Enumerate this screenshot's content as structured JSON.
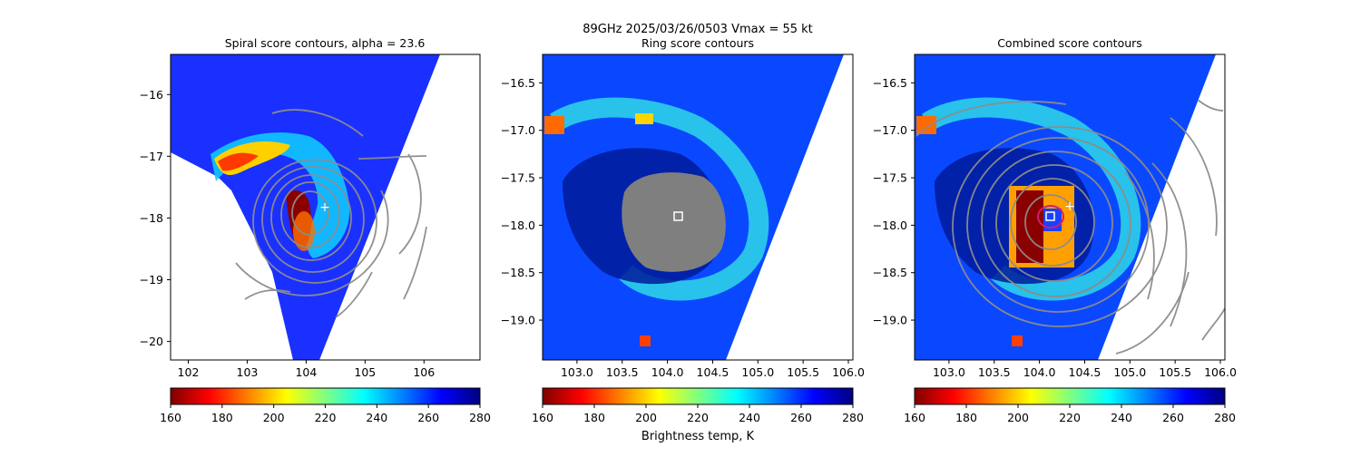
{
  "header": {
    "line1": "89GHz  2025/03/26/0503    Vmax = 55 kt"
  },
  "colorbar": {
    "ticks": [
      "160",
      "180",
      "200",
      "220",
      "240",
      "260",
      "280"
    ],
    "label": "Brightness temp, K",
    "colors": [
      "#800000",
      "#ff0000",
      "#ff8000",
      "#ffff00",
      "#80ff80",
      "#00ffff",
      "#0080ff",
      "#0000ff",
      "#000080"
    ]
  },
  "chart_data": [
    {
      "type": "heatmap",
      "title": "Spiral score contours, alpha = 23.6",
      "xlim": [
        101.7,
        106.95
      ],
      "ylim": [
        -20.3,
        -15.35
      ],
      "xticks": [
        "102",
        "103",
        "104",
        "105",
        "106"
      ],
      "yticks": [
        "−16",
        "−17",
        "−18",
        "−19",
        "−20"
      ],
      "colorbar_range": [
        160,
        280
      ],
      "colorbar_label": "",
      "contours": "gray spiral score contours",
      "markers": [
        {
          "symbol": "+",
          "x": 104.3,
          "y": -17.8
        }
      ]
    },
    {
      "type": "heatmap",
      "title": "Ring score contours",
      "xlim": [
        102.62,
        106.05
      ],
      "ylim": [
        -19.42,
        -16.2
      ],
      "xticks": [
        "103.0",
        "103.5",
        "104.0",
        "104.5",
        "105.0",
        "105.5",
        "106.0"
      ],
      "yticks": [
        "−16.5",
        "−17.0",
        "−17.5",
        "−18.0",
        "−18.5",
        "−19.0"
      ],
      "colorbar_range": [
        160,
        280
      ],
      "colorbar_label": "Brightness temp, K",
      "contours": "gray ring score contours",
      "markers": [
        {
          "symbol": "square",
          "x": 104.1,
          "y": -17.9
        }
      ]
    },
    {
      "type": "heatmap",
      "title": "Combined score contours",
      "xlim": [
        102.62,
        106.05
      ],
      "ylim": [
        -19.42,
        -16.2
      ],
      "xticks": [
        "103.0",
        "103.5",
        "104.0",
        "104.5",
        "105.0",
        "105.5",
        "106.0"
      ],
      "yticks": [
        "−16.5",
        "−17.0",
        "−17.5",
        "−18.0",
        "−18.5",
        "−19.0"
      ],
      "colorbar_range": [
        160,
        280
      ],
      "colorbar_label": "",
      "contours": "gray combined score contours",
      "markers": [
        {
          "symbol": "square",
          "x": 104.1,
          "y": -17.9
        },
        {
          "symbol": "+",
          "x": 104.3,
          "y": -17.8
        },
        {
          "symbol": "ring",
          "x": 104.1,
          "y": -17.9
        }
      ]
    }
  ]
}
